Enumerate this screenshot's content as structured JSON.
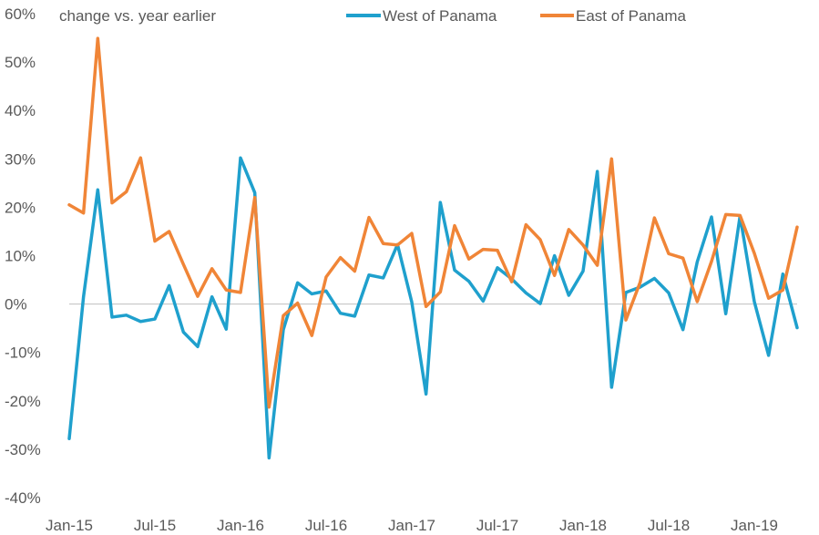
{
  "chart_data": {
    "type": "line",
    "title": "",
    "ylabel": "change vs. year earlier",
    "xlabel": "",
    "ylim": [
      -40,
      60
    ],
    "y_ticks": [
      -40,
      -30,
      -20,
      -10,
      0,
      10,
      20,
      30,
      40,
      50,
      60
    ],
    "y_tick_labels": [
      "-40%",
      "-30%",
      "-20%",
      "-10%",
      "0%",
      "10%",
      "20%",
      "30%",
      "40%",
      "50%",
      "60%"
    ],
    "x_tick_labels": [
      "Jan-15",
      "Jul-15",
      "Jan-16",
      "Jul-16",
      "Jan-17",
      "Jul-17",
      "Jan-18",
      "Jul-18",
      "Jan-19"
    ],
    "x_tick_index": [
      0,
      6,
      12,
      18,
      24,
      30,
      36,
      42,
      48
    ],
    "categories_count": 52,
    "grid": false,
    "zero_line": true,
    "legend_position": "top",
    "series": [
      {
        "name": "West of Panama",
        "color": "#1fa0cd",
        "values": [
          -27.8,
          1.5,
          23.6,
          -2.7,
          -2.3,
          -3.6,
          -3.1,
          3.8,
          -5.8,
          -8.8,
          1.5,
          -5.2,
          30.2,
          23.0,
          -31.8,
          -5.3,
          4.4,
          2.1,
          2.7,
          -1.9,
          -2.5,
          6.0,
          5.4,
          12.3,
          0.4,
          -18.6,
          21.0,
          7.0,
          4.7,
          0.6,
          7.5,
          5.2,
          2.3,
          0.1,
          10.0,
          1.8,
          6.8,
          27.4,
          -17.2,
          2.4,
          3.5,
          5.3,
          2.3,
          -5.3,
          8.7,
          18.0,
          -2.0,
          18.2,
          0.5,
          -10.6,
          6.2,
          -4.9
        ]
      },
      {
        "name": "East of Panama",
        "color": "#f08537",
        "values": [
          20.5,
          18.8,
          54.9,
          20.9,
          23.2,
          30.2,
          13.0,
          15.0,
          8.2,
          1.6,
          7.3,
          2.9,
          2.4,
          22.0,
          -21.3,
          -2.4,
          0.2,
          -6.5,
          5.6,
          9.6,
          6.8,
          17.9,
          12.5,
          12.2,
          14.6,
          -0.5,
          2.5,
          16.2,
          9.3,
          11.3,
          11.1,
          4.6,
          16.4,
          13.3,
          5.9,
          15.4,
          12.2,
          8.0,
          30.0,
          -3.3,
          4.5,
          17.8,
          10.4,
          9.5,
          0.5,
          8.8,
          18.5,
          18.3,
          10.5,
          1.2,
          2.9,
          15.9
        ]
      }
    ]
  }
}
